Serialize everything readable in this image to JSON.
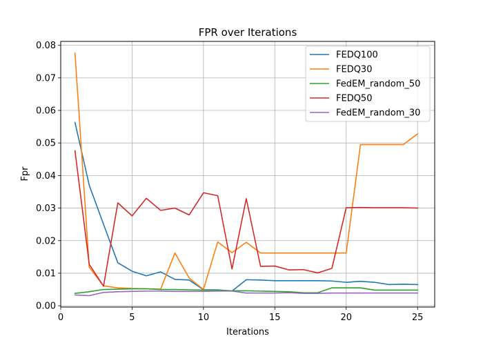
{
  "chart_data": {
    "type": "line",
    "title": "FPR over Iterations",
    "xlabel": "Iterations",
    "ylabel": "Fpr",
    "xlim": [
      0,
      26.2
    ],
    "ylim": [
      -0.0004,
      0.0812
    ],
    "x_ticks": [
      0,
      5,
      10,
      15,
      20,
      25
    ],
    "x_tick_labels": [
      "0",
      "5",
      "10",
      "15",
      "20",
      "25"
    ],
    "y_ticks": [
      0.0,
      0.01,
      0.02,
      0.03,
      0.04,
      0.05,
      0.06,
      0.07,
      0.08
    ],
    "y_tick_labels": [
      "0.00",
      "0.01",
      "0.02",
      "0.03",
      "0.04",
      "0.05",
      "0.06",
      "0.07",
      "0.08"
    ],
    "grid": true,
    "legend_position": "top-right",
    "x": [
      1,
      2,
      3,
      4,
      5,
      6,
      7,
      8,
      9,
      10,
      11,
      12,
      13,
      14,
      15,
      16,
      17,
      18,
      19,
      20,
      21,
      22,
      23,
      24,
      25
    ],
    "series": [
      {
        "name": "FEDQ100",
        "color": "#1f77b4",
        "values": [
          0.0563,
          0.037,
          0.025,
          0.0132,
          0.0106,
          0.0092,
          0.0104,
          0.0081,
          0.0079,
          0.0049,
          0.0049,
          0.0045,
          0.008,
          0.0079,
          0.0077,
          0.0077,
          0.0077,
          0.0077,
          0.0076,
          0.0072,
          0.0075,
          0.0072,
          0.0065,
          0.0066,
          0.0065
        ]
      },
      {
        "name": "FEDQ30",
        "color": "#ff7f0e",
        "values": [
          0.0776,
          0.0118,
          0.0061,
          0.0055,
          0.0053,
          0.0052,
          0.0051,
          0.0162,
          0.0085,
          0.005,
          0.0196,
          0.0163,
          0.0195,
          0.0162,
          0.0162,
          0.0162,
          0.0162,
          0.0162,
          0.0162,
          0.0162,
          0.0495,
          0.0495,
          0.0495,
          0.0495,
          0.0528
        ]
      },
      {
        "name": "FedEM_random_50",
        "color": "#2ca02c",
        "values": [
          0.0038,
          0.0043,
          0.005,
          0.0051,
          0.0052,
          0.0052,
          0.005,
          0.005,
          0.0049,
          0.0048,
          0.0048,
          0.0046,
          0.0046,
          0.0045,
          0.0044,
          0.0043,
          0.004,
          0.004,
          0.0055,
          0.0055,
          0.0055,
          0.0048,
          0.0048,
          0.0048,
          0.0048
        ]
      },
      {
        "name": "FEDQ50",
        "color": "#d62728",
        "values": [
          0.0476,
          0.0127,
          0.006,
          0.0316,
          0.0276,
          0.033,
          0.0293,
          0.03,
          0.0279,
          0.0347,
          0.0338,
          0.0113,
          0.0329,
          0.0121,
          0.0122,
          0.011,
          0.0111,
          0.0101,
          0.0115,
          0.0301,
          0.0302,
          0.0301,
          0.0301,
          0.0301,
          0.03
        ]
      },
      {
        "name": "FedEM_random_30",
        "color": "#9467bd",
        "values": [
          0.0033,
          0.0031,
          0.0041,
          0.0043,
          0.0044,
          0.0045,
          0.0045,
          0.0044,
          0.0044,
          0.0044,
          0.0045,
          0.0045,
          0.0039,
          0.0039,
          0.0039,
          0.004,
          0.0038,
          0.0038,
          0.0039,
          0.0039,
          0.0039,
          0.0039,
          0.0039,
          0.0039,
          0.0039
        ]
      }
    ]
  }
}
